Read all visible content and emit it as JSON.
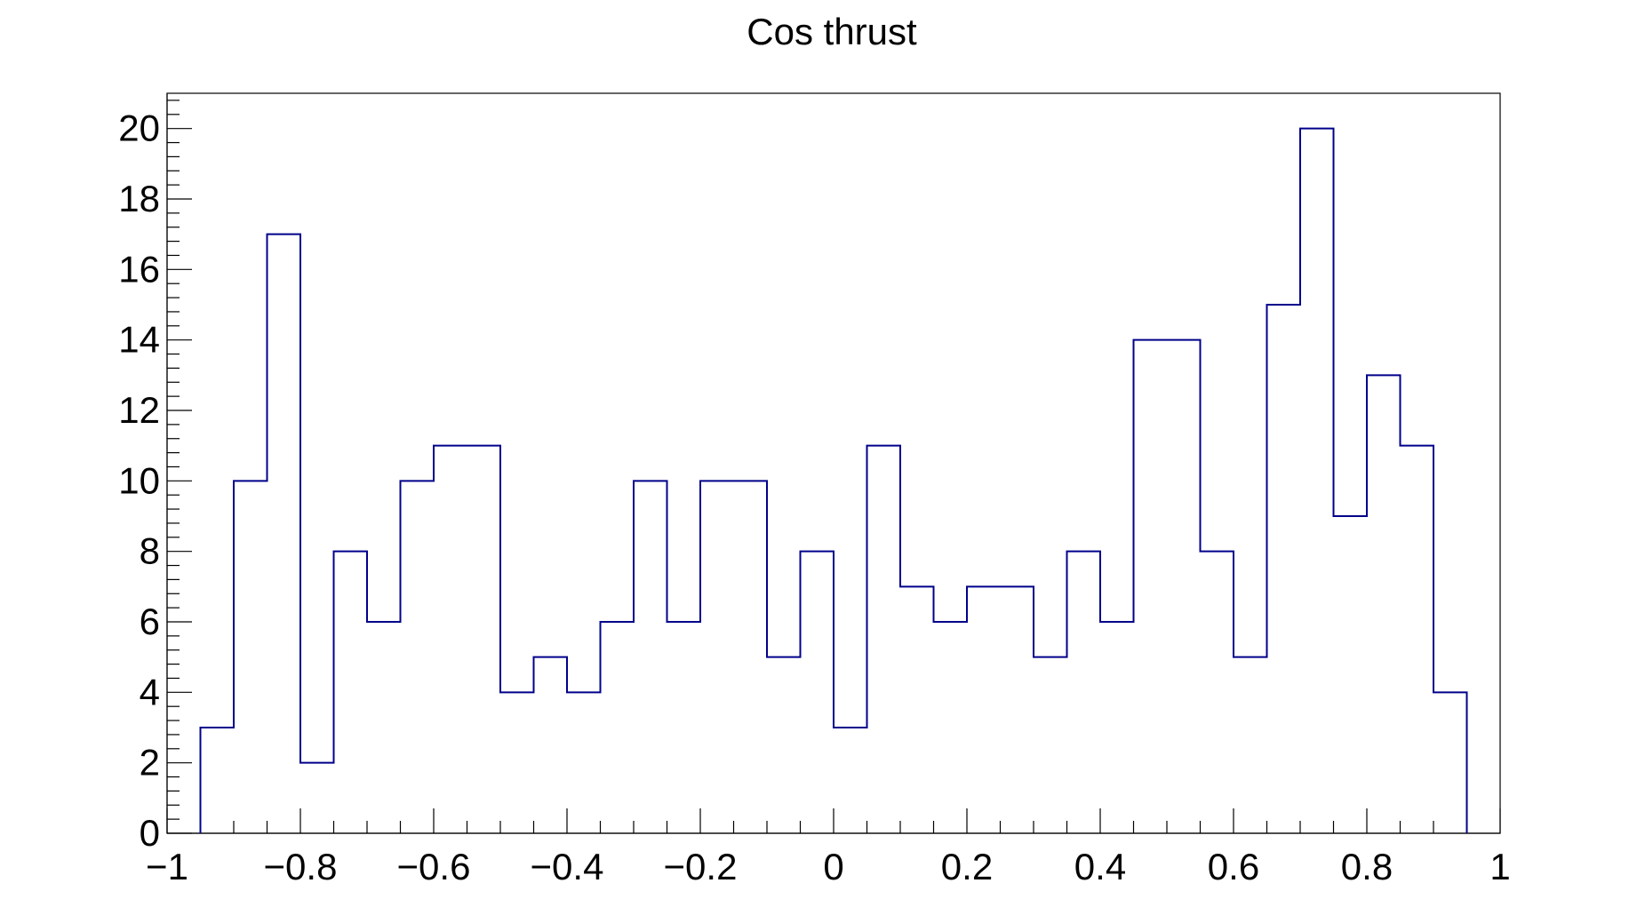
{
  "chart_data": {
    "type": "bar",
    "title": "Cos thrust",
    "xlabel": "",
    "ylabel": "",
    "xlim": [
      -1,
      1
    ],
    "ylim": [
      0,
      21
    ],
    "legend": "none",
    "grid": false,
    "line_color": "#00008b",
    "x_ticks": [
      -1,
      -0.8,
      -0.6,
      -0.4,
      -0.2,
      0,
      0.2,
      0.4,
      0.6,
      0.8,
      1
    ],
    "x_tick_labels": [
      "−1",
      "−0.8",
      "−0.6",
      "−0.4",
      "−0.2",
      "0",
      "0.2",
      "0.4",
      "0.6",
      "0.8",
      "1"
    ],
    "y_ticks": [
      0,
      2,
      4,
      6,
      8,
      10,
      12,
      14,
      16,
      18,
      20
    ],
    "y_tick_labels": [
      "0",
      "2",
      "4",
      "6",
      "8",
      "10",
      "12",
      "14",
      "16",
      "18",
      "20"
    ],
    "bin_edges": [
      -0.95,
      -0.9,
      -0.85,
      -0.8,
      -0.75,
      -0.7,
      -0.65,
      -0.6,
      -0.55,
      -0.5,
      -0.45,
      -0.4,
      -0.35,
      -0.3,
      -0.25,
      -0.2,
      -0.15,
      -0.1,
      -0.05,
      0,
      0.05,
      0.1,
      0.15,
      0.2,
      0.25,
      0.3,
      0.35,
      0.4,
      0.45,
      0.5,
      0.55,
      0.6,
      0.65,
      0.7,
      0.75,
      0.8,
      0.85,
      0.9,
      0.95
    ],
    "values": [
      3,
      10,
      17,
      2,
      8,
      6,
      10,
      11,
      11,
      4,
      5,
      4,
      6,
      10,
      6,
      10,
      10,
      5,
      8,
      3,
      11,
      7,
      6,
      7,
      7,
      5,
      8,
      6,
      14,
      14,
      8,
      5,
      15,
      20,
      9,
      13,
      11,
      4
    ]
  }
}
